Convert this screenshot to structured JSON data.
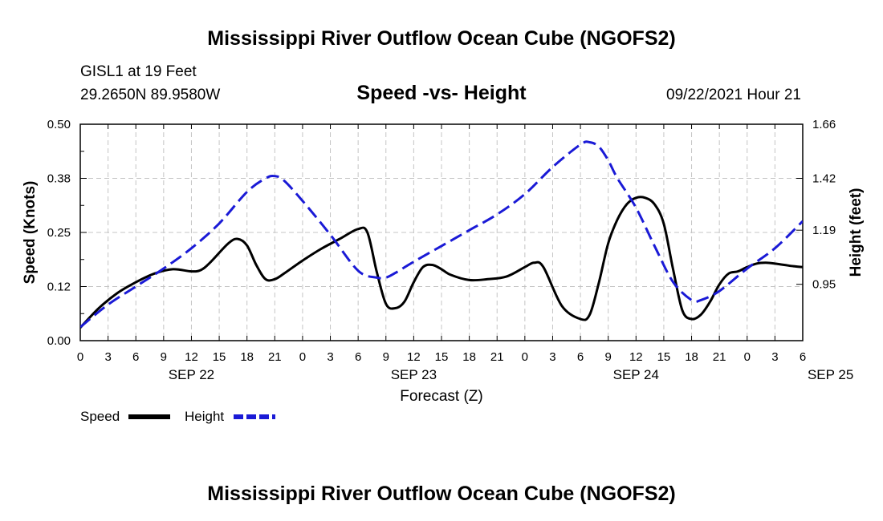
{
  "header": {
    "title": "Mississippi River Outflow Ocean Cube (NGOFS2)",
    "station": "GISL1 at 19 Feet",
    "coords": "29.2650N  89.9580W",
    "subtitle": "Speed -vs- Height",
    "datetime": "09/22/2021 Hour 21"
  },
  "footer": {
    "title": "Mississippi River Outflow Ocean Cube (NGOFS2)"
  },
  "chart_data": {
    "type": "line",
    "xlabel": "Forecast (Z)",
    "ylabel_left": "Speed (Knots)",
    "ylabel_right": "Height (feet)",
    "x_ticks": [
      "0",
      "3",
      "6",
      "9",
      "12",
      "15",
      "18",
      "21",
      "0",
      "3",
      "6",
      "9",
      "12",
      "15",
      "18",
      "21",
      "0",
      "3",
      "6",
      "9",
      "12",
      "15",
      "18",
      "21",
      "0",
      "3",
      "6"
    ],
    "date_labels": [
      {
        "label": "SEP 22",
        "hour": 12
      },
      {
        "label": "SEP 23",
        "hour": 36
      },
      {
        "label": "SEP 24",
        "hour": 60
      },
      {
        "label": "SEP 25",
        "hour": 81
      }
    ],
    "x_range": [
      0,
      78
    ],
    "y_left": {
      "range": [
        0,
        0.5
      ],
      "ticks": [
        "0.00",
        "0.12",
        "0.25",
        "0.38",
        "0.50"
      ]
    },
    "y_right": {
      "range": [
        0.7,
        1.66
      ],
      "ticks": [
        "0.95",
        "1.19",
        "1.42",
        "1.66"
      ]
    },
    "grid": true,
    "legend": [
      {
        "label": "Speed",
        "color": "#000000",
        "style": "solid"
      },
      {
        "label": "Height",
        "color": "#1a1ad6",
        "style": "dashed"
      }
    ],
    "series": [
      {
        "name": "Speed",
        "axis": "left",
        "color": "#000000",
        "x": [
          0,
          2,
          4,
          6,
          8,
          10,
          12,
          13,
          14,
          16,
          17,
          18,
          19,
          20,
          21,
          22,
          24,
          26,
          28,
          30,
          31,
          32,
          33,
          34,
          35,
          36,
          37,
          38,
          39,
          40,
          42,
          44,
          46,
          48,
          49,
          50,
          52,
          54,
          55,
          56,
          57,
          58,
          59,
          60,
          61,
          62,
          63,
          64,
          65,
          66,
          67,
          68,
          69,
          70,
          71,
          72,
          73,
          74,
          75,
          76,
          77,
          78
        ],
        "values": [
          0.03,
          0.075,
          0.11,
          0.135,
          0.155,
          0.165,
          0.16,
          0.163,
          0.18,
          0.225,
          0.235,
          0.22,
          0.175,
          0.142,
          0.142,
          0.155,
          0.185,
          0.212,
          0.235,
          0.258,
          0.25,
          0.16,
          0.085,
          0.075,
          0.09,
          0.135,
          0.17,
          0.175,
          0.165,
          0.152,
          0.14,
          0.142,
          0.148,
          0.17,
          0.18,
          0.17,
          0.08,
          0.05,
          0.06,
          0.135,
          0.225,
          0.28,
          0.315,
          0.33,
          0.33,
          0.315,
          0.27,
          0.165,
          0.07,
          0.05,
          0.06,
          0.09,
          0.13,
          0.155,
          0.16,
          0.17,
          0.178,
          0.18,
          0.178,
          0.175,
          0.172,
          0.17
        ]
      },
      {
        "name": "Height",
        "axis": "right",
        "color": "#1a1ad6",
        "x": [
          0,
          3,
          6,
          9,
          12,
          15,
          18,
          20,
          21,
          22,
          24,
          27,
          30,
          32,
          33,
          34,
          36,
          39,
          42,
          45,
          48,
          51,
          54,
          55,
          56,
          57,
          58,
          60,
          62,
          64,
          66,
          67,
          69,
          72,
          75,
          78
        ],
        "values": [
          0.76,
          0.86,
          0.94,
          1.02,
          1.11,
          1.22,
          1.36,
          1.42,
          1.43,
          1.41,
          1.32,
          1.17,
          1.01,
          0.98,
          0.98,
          1.0,
          1.05,
          1.12,
          1.19,
          1.26,
          1.35,
          1.47,
          1.57,
          1.58,
          1.56,
          1.5,
          1.42,
          1.29,
          1.12,
          0.96,
          0.88,
          0.88,
          0.92,
          1.02,
          1.11,
          1.23
        ]
      }
    ]
  }
}
